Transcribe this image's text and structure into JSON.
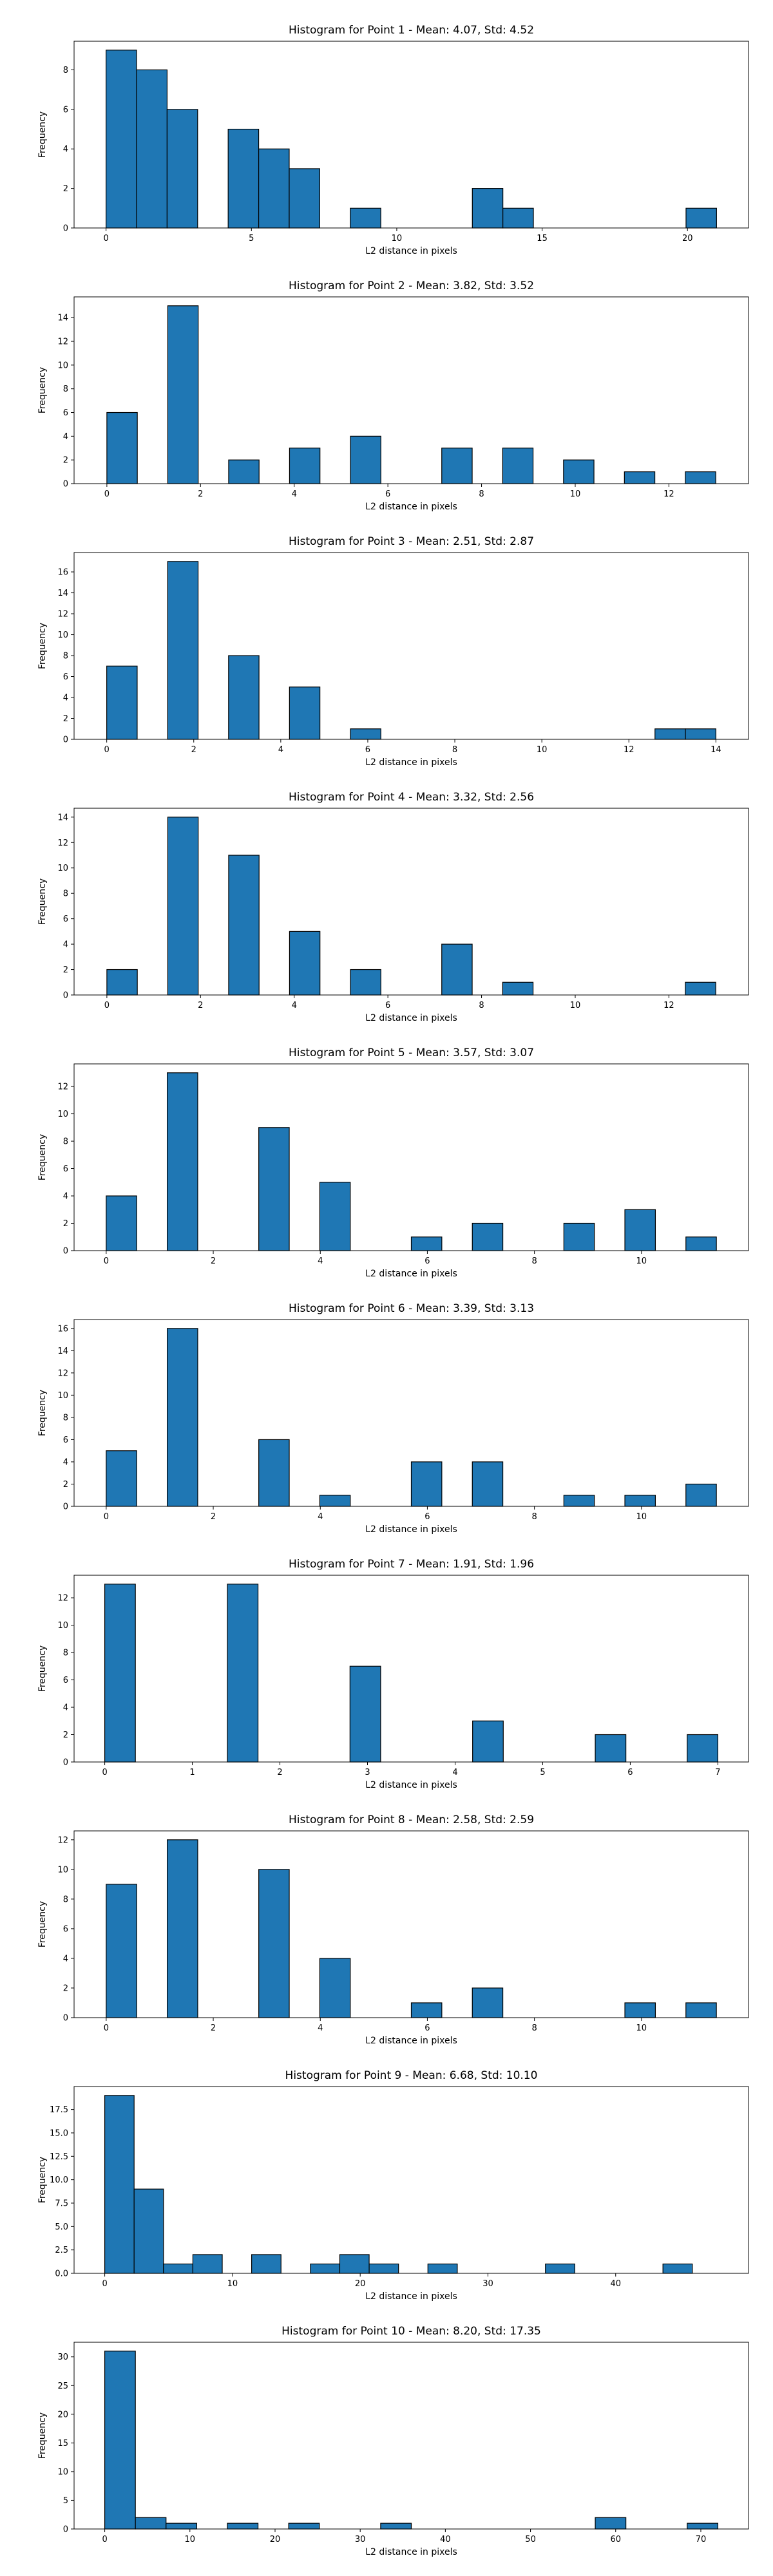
{
  "style": {
    "bar_color": "#1f77b4",
    "edge_color": "#000000",
    "background": "#ffffff"
  },
  "chart_data": [
    {
      "type": "bar",
      "title": "Histogram for Point 1 - Mean: 4.07, Std: 4.52",
      "xlabel": "L2 distance in pixels",
      "ylabel": "Frequency",
      "grid": false,
      "xlim": [
        -1.1,
        22.1
      ],
      "ylim": [
        0,
        9.45
      ],
      "xticks": [
        "0",
        "5",
        "10",
        "15",
        "20"
      ],
      "xtick_values": [
        0,
        5,
        10,
        15,
        20
      ],
      "yticks": [
        "0",
        "2",
        "4",
        "6",
        "8"
      ],
      "ytick_values": [
        0,
        2,
        4,
        6,
        8
      ],
      "bins": [
        {
          "x0": 0,
          "x1": 1.05,
          "count": 9
        },
        {
          "x0": 1.05,
          "x1": 2.1,
          "count": 8
        },
        {
          "x0": 2.1,
          "x1": 3.15,
          "count": 6
        },
        {
          "x0": 4.2,
          "x1": 5.25,
          "count": 5
        },
        {
          "x0": 5.25,
          "x1": 6.3,
          "count": 4
        },
        {
          "x0": 6.3,
          "x1": 7.35,
          "count": 3
        },
        {
          "x0": 8.4,
          "x1": 9.45,
          "count": 1
        },
        {
          "x0": 12.6,
          "x1": 13.65,
          "count": 2
        },
        {
          "x0": 13.65,
          "x1": 14.7,
          "count": 1
        },
        {
          "x0": 19.95,
          "x1": 21.0,
          "count": 1
        }
      ]
    },
    {
      "type": "bar",
      "title": "Histogram for Point 2 - Mean: 3.82, Std: 3.52",
      "xlabel": "L2 distance in pixels",
      "ylabel": "Frequency",
      "grid": false,
      "xlim": [
        -0.7,
        13.7
      ],
      "ylim": [
        0,
        15.75
      ],
      "xticks": [
        "0",
        "2",
        "4",
        "6",
        "8",
        "10",
        "12"
      ],
      "xtick_values": [
        0,
        2,
        4,
        6,
        8,
        10,
        12
      ],
      "yticks": [
        "0",
        "2",
        "4",
        "6",
        "8",
        "10",
        "12",
        "14"
      ],
      "ytick_values": [
        0,
        2,
        4,
        6,
        8,
        10,
        12,
        14
      ],
      "bins": [
        {
          "x0": 0,
          "x1": 0.65,
          "count": 6
        },
        {
          "x0": 1.3,
          "x1": 1.95,
          "count": 15
        },
        {
          "x0": 2.6,
          "x1": 3.25,
          "count": 2
        },
        {
          "x0": 3.9,
          "x1": 4.55,
          "count": 3
        },
        {
          "x0": 5.2,
          "x1": 5.85,
          "count": 4
        },
        {
          "x0": 7.15,
          "x1": 7.8,
          "count": 3
        },
        {
          "x0": 8.45,
          "x1": 9.1,
          "count": 3
        },
        {
          "x0": 9.75,
          "x1": 10.4,
          "count": 2
        },
        {
          "x0": 11.05,
          "x1": 11.7,
          "count": 1
        },
        {
          "x0": 12.35,
          "x1": 13.0,
          "count": 1
        }
      ]
    },
    {
      "type": "bar",
      "title": "Histogram for Point 3 - Mean: 2.51, Std: 2.87",
      "xlabel": "L2 distance in pixels",
      "ylabel": "Frequency",
      "grid": false,
      "xlim": [
        -0.75,
        14.75
      ],
      "ylim": [
        0,
        17.85
      ],
      "xticks": [
        "0",
        "2",
        "4",
        "6",
        "8",
        "10",
        "12",
        "14"
      ],
      "xtick_values": [
        0,
        2,
        4,
        6,
        8,
        10,
        12,
        14
      ],
      "yticks": [
        "0",
        "2",
        "4",
        "6",
        "8",
        "10",
        "12",
        "14",
        "16"
      ],
      "ytick_values": [
        0,
        2,
        4,
        6,
        8,
        10,
        12,
        14,
        16
      ],
      "bins": [
        {
          "x0": 0,
          "x1": 0.7,
          "count": 7
        },
        {
          "x0": 1.4,
          "x1": 2.1,
          "count": 17
        },
        {
          "x0": 2.8,
          "x1": 3.5,
          "count": 8
        },
        {
          "x0": 4.2,
          "x1": 4.9,
          "count": 5
        },
        {
          "x0": 5.6,
          "x1": 6.3,
          "count": 1
        },
        {
          "x0": 12.6,
          "x1": 13.3,
          "count": 1
        },
        {
          "x0": 13.3,
          "x1": 14.0,
          "count": 1
        }
      ]
    },
    {
      "type": "bar",
      "title": "Histogram for Point 4 - Mean: 3.32, Std: 2.56",
      "xlabel": "L2 distance in pixels",
      "ylabel": "Frequency",
      "grid": false,
      "xlim": [
        -0.7,
        13.7
      ],
      "ylim": [
        0,
        14.7
      ],
      "xticks": [
        "0",
        "2",
        "4",
        "6",
        "8",
        "10",
        "12"
      ],
      "xtick_values": [
        0,
        2,
        4,
        6,
        8,
        10,
        12
      ],
      "yticks": [
        "0",
        "2",
        "4",
        "6",
        "8",
        "10",
        "12",
        "14"
      ],
      "ytick_values": [
        0,
        2,
        4,
        6,
        8,
        10,
        12,
        14
      ],
      "bins": [
        {
          "x0": 0,
          "x1": 0.65,
          "count": 2
        },
        {
          "x0": 1.3,
          "x1": 1.95,
          "count": 14
        },
        {
          "x0": 2.6,
          "x1": 3.25,
          "count": 11
        },
        {
          "x0": 3.9,
          "x1": 4.55,
          "count": 5
        },
        {
          "x0": 5.2,
          "x1": 5.85,
          "count": 2
        },
        {
          "x0": 7.15,
          "x1": 7.8,
          "count": 4
        },
        {
          "x0": 8.45,
          "x1": 9.1,
          "count": 1
        },
        {
          "x0": 12.35,
          "x1": 13.0,
          "count": 1
        }
      ]
    },
    {
      "type": "bar",
      "title": "Histogram for Point 5 - Mean: 3.57, Std: 3.07",
      "xlabel": "L2 distance in pixels",
      "ylabel": "Frequency",
      "grid": false,
      "xlim": [
        -0.6,
        12.0
      ],
      "ylim": [
        0,
        13.65
      ],
      "xticks": [
        "0",
        "2",
        "4",
        "6",
        "8",
        "10"
      ],
      "xtick_values": [
        0,
        2,
        4,
        6,
        8,
        10
      ],
      "yticks": [
        "0",
        "2",
        "4",
        "6",
        "8",
        "10",
        "12"
      ],
      "ytick_values": [
        0,
        2,
        4,
        6,
        8,
        10,
        12
      ],
      "bins": [
        {
          "x0": 0,
          "x1": 0.57,
          "count": 4
        },
        {
          "x0": 1.14,
          "x1": 1.71,
          "count": 13
        },
        {
          "x0": 2.85,
          "x1": 3.42,
          "count": 9
        },
        {
          "x0": 3.99,
          "x1": 4.56,
          "count": 5
        },
        {
          "x0": 5.7,
          "x1": 6.27,
          "count": 1
        },
        {
          "x0": 6.84,
          "x1": 7.41,
          "count": 2
        },
        {
          "x0": 8.55,
          "x1": 9.12,
          "count": 2
        },
        {
          "x0": 9.69,
          "x1": 10.26,
          "count": 3
        },
        {
          "x0": 10.83,
          "x1": 11.4,
          "count": 1
        }
      ]
    },
    {
      "type": "bar",
      "title": "Histogram for Point 6 - Mean: 3.39, Std: 3.13",
      "xlabel": "L2 distance in pixels",
      "ylabel": "Frequency",
      "grid": false,
      "xlim": [
        -0.6,
        12.0
      ],
      "ylim": [
        0,
        16.8
      ],
      "xticks": [
        "0",
        "2",
        "4",
        "6",
        "8",
        "10"
      ],
      "xtick_values": [
        0,
        2,
        4,
        6,
        8,
        10
      ],
      "yticks": [
        "0",
        "2",
        "4",
        "6",
        "8",
        "10",
        "12",
        "14",
        "16"
      ],
      "ytick_values": [
        0,
        2,
        4,
        6,
        8,
        10,
        12,
        14,
        16
      ],
      "bins": [
        {
          "x0": 0,
          "x1": 0.57,
          "count": 5
        },
        {
          "x0": 1.14,
          "x1": 1.71,
          "count": 16
        },
        {
          "x0": 2.85,
          "x1": 3.42,
          "count": 6
        },
        {
          "x0": 3.99,
          "x1": 4.56,
          "count": 1
        },
        {
          "x0": 5.7,
          "x1": 6.27,
          "count": 4
        },
        {
          "x0": 6.84,
          "x1": 7.41,
          "count": 4
        },
        {
          "x0": 8.55,
          "x1": 9.12,
          "count": 1
        },
        {
          "x0": 9.69,
          "x1": 10.26,
          "count": 1
        },
        {
          "x0": 10.83,
          "x1": 11.4,
          "count": 2
        }
      ]
    },
    {
      "type": "bar",
      "title": "Histogram for Point 7 - Mean: 1.91, Std: 1.96",
      "xlabel": "L2 distance in pixels",
      "ylabel": "Frequency",
      "grid": false,
      "xlim": [
        -0.35,
        7.35
      ],
      "ylim": [
        0,
        13.65
      ],
      "xticks": [
        "0",
        "1",
        "2",
        "3",
        "4",
        "5",
        "6",
        "7"
      ],
      "xtick_values": [
        0,
        1,
        2,
        3,
        4,
        5,
        6,
        7
      ],
      "yticks": [
        "0",
        "2",
        "4",
        "6",
        "8",
        "10",
        "12"
      ],
      "ytick_values": [
        0,
        2,
        4,
        6,
        8,
        10,
        12
      ],
      "bins": [
        {
          "x0": 0,
          "x1": 0.35,
          "count": 13
        },
        {
          "x0": 1.4,
          "x1": 1.75,
          "count": 13
        },
        {
          "x0": 2.8,
          "x1": 3.15,
          "count": 7
        },
        {
          "x0": 4.2,
          "x1": 4.55,
          "count": 3
        },
        {
          "x0": 5.6,
          "x1": 5.95,
          "count": 2
        },
        {
          "x0": 6.65,
          "x1": 7.0,
          "count": 2
        }
      ]
    },
    {
      "type": "bar",
      "title": "Histogram for Point 8 - Mean: 2.58, Std: 2.59",
      "xlabel": "L2 distance in pixels",
      "ylabel": "Frequency",
      "grid": false,
      "xlim": [
        -0.6,
        12.0
      ],
      "ylim": [
        0,
        12.6
      ],
      "xticks": [
        "0",
        "2",
        "4",
        "6",
        "8",
        "10"
      ],
      "xtick_values": [
        0,
        2,
        4,
        6,
        8,
        10
      ],
      "yticks": [
        "0",
        "2",
        "4",
        "6",
        "8",
        "10",
        "12"
      ],
      "ytick_values": [
        0,
        2,
        4,
        6,
        8,
        10,
        12
      ],
      "bins": [
        {
          "x0": 0,
          "x1": 0.57,
          "count": 9
        },
        {
          "x0": 1.14,
          "x1": 1.71,
          "count": 12
        },
        {
          "x0": 2.85,
          "x1": 3.42,
          "count": 10
        },
        {
          "x0": 3.99,
          "x1": 4.56,
          "count": 4
        },
        {
          "x0": 5.7,
          "x1": 6.27,
          "count": 1
        },
        {
          "x0": 6.84,
          "x1": 7.41,
          "count": 2
        },
        {
          "x0": 9.69,
          "x1": 10.26,
          "count": 1
        },
        {
          "x0": 10.83,
          "x1": 11.4,
          "count": 1
        }
      ]
    },
    {
      "type": "bar",
      "title": "Histogram for Point 9 - Mean: 6.68, Std: 10.10",
      "xlabel": "L2 distance in pixels",
      "ylabel": "Frequency",
      "grid": false,
      "xlim": [
        -2.4,
        50.4
      ],
      "ylim": [
        0,
        19.95
      ],
      "xticks": [
        "0",
        "10",
        "20",
        "30",
        "40"
      ],
      "xtick_values": [
        0,
        10,
        20,
        30,
        40
      ],
      "yticks": [
        "0.0",
        "2.5",
        "5.0",
        "7.5",
        "10.0",
        "12.5",
        "15.0",
        "17.5"
      ],
      "ytick_values": [
        0,
        2.5,
        5,
        7.5,
        10,
        12.5,
        15,
        17.5
      ],
      "bins": [
        {
          "x0": 0,
          "x1": 2.3,
          "count": 19
        },
        {
          "x0": 2.3,
          "x1": 4.6,
          "count": 9
        },
        {
          "x0": 4.6,
          "x1": 6.9,
          "count": 1
        },
        {
          "x0": 6.9,
          "x1": 9.2,
          "count": 2
        },
        {
          "x0": 11.5,
          "x1": 13.8,
          "count": 2
        },
        {
          "x0": 16.1,
          "x1": 18.4,
          "count": 1
        },
        {
          "x0": 18.4,
          "x1": 20.7,
          "count": 2
        },
        {
          "x0": 20.7,
          "x1": 23.0,
          "count": 1
        },
        {
          "x0": 25.3,
          "x1": 27.6,
          "count": 1
        },
        {
          "x0": 34.5,
          "x1": 36.8,
          "count": 1
        },
        {
          "x0": 43.7,
          "x1": 46.0,
          "count": 1
        }
      ]
    },
    {
      "type": "bar",
      "title": "Histogram for Point 10 - Mean: 8.20, Std: 17.35",
      "xlabel": "L2 distance in pixels",
      "ylabel": "Frequency",
      "grid": false,
      "xlim": [
        -3.6,
        75.6
      ],
      "ylim": [
        0,
        32.55
      ],
      "xticks": [
        "0",
        "10",
        "20",
        "30",
        "40",
        "50",
        "60",
        "70"
      ],
      "xtick_values": [
        0,
        10,
        20,
        30,
        40,
        50,
        60,
        70
      ],
      "yticks": [
        "0",
        "5",
        "10",
        "15",
        "20",
        "25",
        "30"
      ],
      "ytick_values": [
        0,
        5,
        10,
        15,
        20,
        25,
        30
      ],
      "bins": [
        {
          "x0": 0,
          "x1": 3.6,
          "count": 31
        },
        {
          "x0": 3.6,
          "x1": 7.2,
          "count": 2
        },
        {
          "x0": 7.2,
          "x1": 10.8,
          "count": 1
        },
        {
          "x0": 14.4,
          "x1": 18.0,
          "count": 1
        },
        {
          "x0": 21.6,
          "x1": 25.2,
          "count": 1
        },
        {
          "x0": 32.4,
          "x1": 36.0,
          "count": 1
        },
        {
          "x0": 57.6,
          "x1": 61.2,
          "count": 2
        },
        {
          "x0": 68.4,
          "x1": 72.0,
          "count": 1
        }
      ]
    }
  ]
}
